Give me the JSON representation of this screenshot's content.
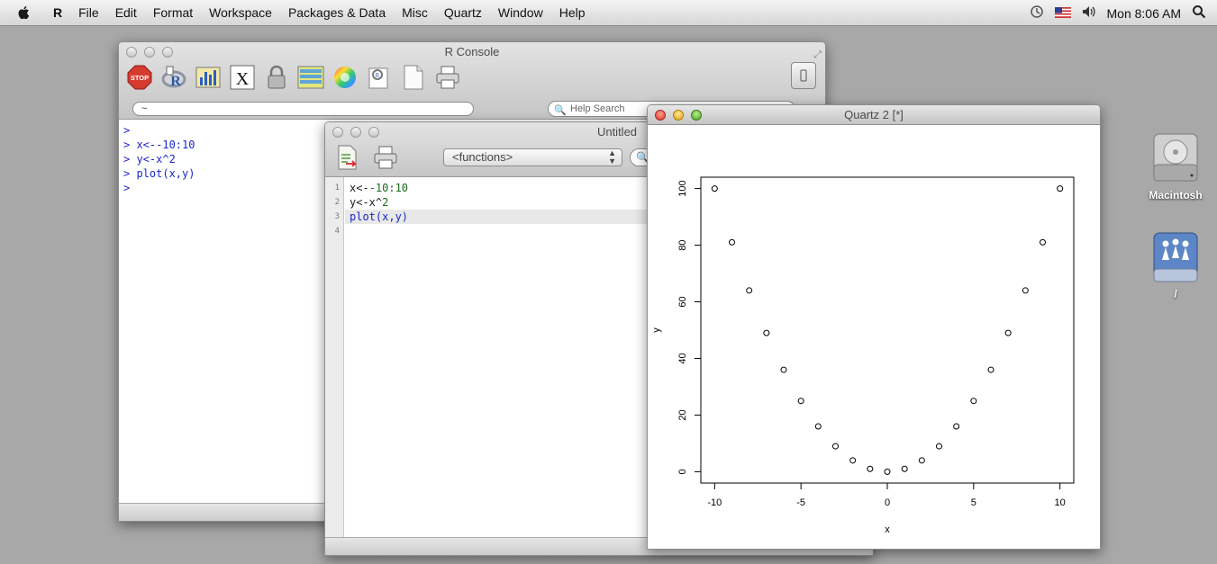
{
  "menubar": {
    "app": "R",
    "items": [
      "File",
      "Edit",
      "Format",
      "Workspace",
      "Packages & Data",
      "Misc",
      "Quartz",
      "Window",
      "Help"
    ],
    "clock": "Mon 8:06 AM"
  },
  "console": {
    "title": "R Console",
    "path": "~",
    "help_search_placeholder": "Help Search",
    "lines": [
      ">",
      "> x<--10:10",
      "> y<-x^2",
      "> plot(x,y)",
      ">"
    ]
  },
  "editor": {
    "title": "Untitled",
    "functions_label": "<functions>",
    "line_numbers": [
      "1",
      "2",
      "3",
      "4"
    ],
    "code": {
      "l1a": "x<-",
      "l1b": "-10:10",
      "l2a": "y<-x^",
      "l2b": "2",
      "l3": "plot(x,y)"
    }
  },
  "quartz": {
    "title": "Quartz 2 [*]"
  },
  "chart_data": {
    "type": "scatter",
    "xlabel": "x",
    "ylabel": "y",
    "x": [
      -10,
      -9,
      -8,
      -7,
      -6,
      -5,
      -4,
      -3,
      -2,
      -1,
      0,
      1,
      2,
      3,
      4,
      5,
      6,
      7,
      8,
      9,
      10
    ],
    "y": [
      100,
      81,
      64,
      49,
      36,
      25,
      16,
      9,
      4,
      1,
      0,
      1,
      4,
      9,
      16,
      25,
      36,
      49,
      64,
      81,
      100
    ],
    "xlim": [
      -10.8,
      10.8
    ],
    "ylim": [
      -4,
      104
    ],
    "xticks": [
      "-10",
      "-5",
      "0",
      "5",
      "10"
    ],
    "yticks": [
      "0",
      "20",
      "40",
      "60",
      "80",
      "100"
    ],
    "marker": "open-circle"
  },
  "desktop": {
    "icons": [
      {
        "label": "Macintosh"
      },
      {
        "label": "/"
      }
    ]
  },
  "colors": {
    "prompt": "#1b27c9",
    "number": "#196b1b"
  }
}
